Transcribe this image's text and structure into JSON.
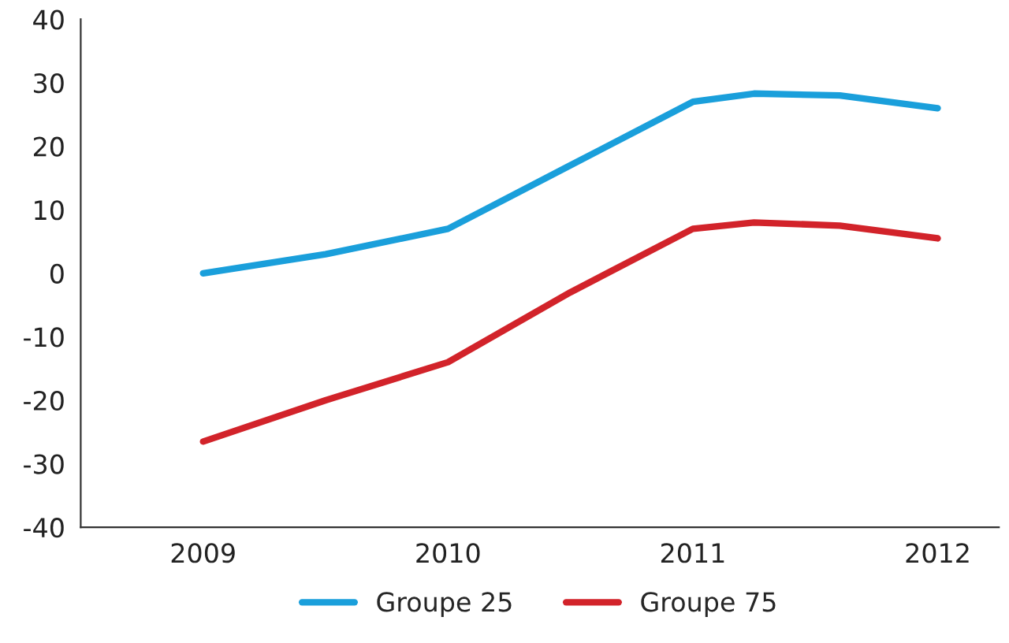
{
  "chart_data": {
    "type": "line",
    "xlim": [
      2008.5,
      2012.25
    ],
    "xticks": [
      2009,
      2010,
      2011,
      2012
    ],
    "ylim": [
      -40,
      40
    ],
    "yticks": [
      -40,
      -30,
      -20,
      -10,
      0,
      10,
      20,
      30,
      40
    ],
    "grid": false,
    "legend": "bottom",
    "marker": "none",
    "line_style": "solid",
    "series": [
      {
        "name": "Groupe 25",
        "color": "#1a9fdb",
        "x": [
          2009,
          2009.5,
          2010,
          2010.5,
          2011,
          2011.25,
          2011.6,
          2012
        ],
        "values": [
          0,
          3,
          7,
          17,
          27,
          28.3,
          28,
          26
        ]
      },
      {
        "name": "Groupe 75",
        "color": "#d2232a",
        "x": [
          2009,
          2009.5,
          2010,
          2010.5,
          2011,
          2011.25,
          2011.6,
          2012
        ],
        "values": [
          -26.5,
          -20,
          -14,
          -3,
          7,
          8,
          7.5,
          5.5
        ]
      }
    ]
  }
}
